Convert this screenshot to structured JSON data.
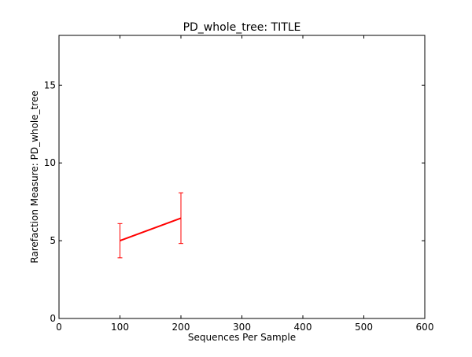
{
  "chart_data": {
    "type": "line",
    "title": "PD_whole_tree: TITLE",
    "xlabel": "Sequences Per Sample",
    "ylabel": "Rarefaction Measure: PD_whole_tree",
    "xlim": [
      0,
      600
    ],
    "ylim": [
      0,
      18.2
    ],
    "xticks": [
      0,
      100,
      200,
      300,
      400,
      500,
      600
    ],
    "yticks": [
      0,
      5,
      10,
      15
    ],
    "grid": false,
    "series": [
      {
        "color": "#ff0000",
        "points": [
          {
            "x": 100,
            "y": 5.0,
            "err": 1.1
          },
          {
            "x": 200,
            "y": 6.45,
            "err": 1.63
          }
        ]
      }
    ]
  }
}
